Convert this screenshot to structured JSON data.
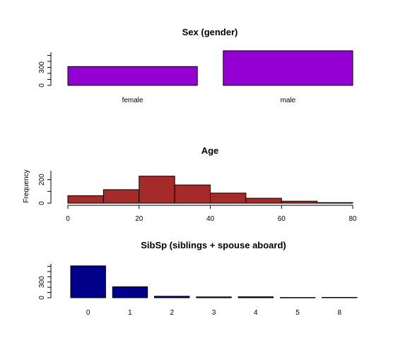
{
  "chart_data": [
    {
      "type": "bar",
      "title": "Sex (gender)",
      "categories": [
        "female",
        "male"
      ],
      "values": [
        314,
        577
      ],
      "ylim": [
        0,
        600
      ],
      "yticks": [
        0,
        300
      ],
      "bar_color": "#9400D3",
      "grid": false
    },
    {
      "type": "bar",
      "title": "Age",
      "ylabel": "Frequency",
      "bins": [
        [
          0,
          10
        ],
        [
          10,
          20
        ],
        [
          20,
          30
        ],
        [
          30,
          40
        ],
        [
          40,
          50
        ],
        [
          50,
          60
        ],
        [
          60,
          70
        ],
        [
          70,
          80
        ]
      ],
      "values": [
        64,
        115,
        230,
        155,
        86,
        42,
        17,
        5
      ],
      "xlim": [
        0,
        80
      ],
      "xticks": [
        0,
        20,
        40,
        60,
        80
      ],
      "ylim": [
        0,
        300
      ],
      "yticks": [
        0,
        200
      ],
      "bar_color": "#A52A2A",
      "grid": false
    },
    {
      "type": "bar",
      "title": "SibSp (siblings + spouse aboard)",
      "categories": [
        "0",
        "1",
        "2",
        "3",
        "4",
        "5",
        "8"
      ],
      "values": [
        608,
        209,
        28,
        16,
        18,
        5,
        7
      ],
      "ylim": [
        0,
        700
      ],
      "yticks": [
        0,
        300
      ],
      "bar_color": "#00008B",
      "grid": false
    }
  ]
}
